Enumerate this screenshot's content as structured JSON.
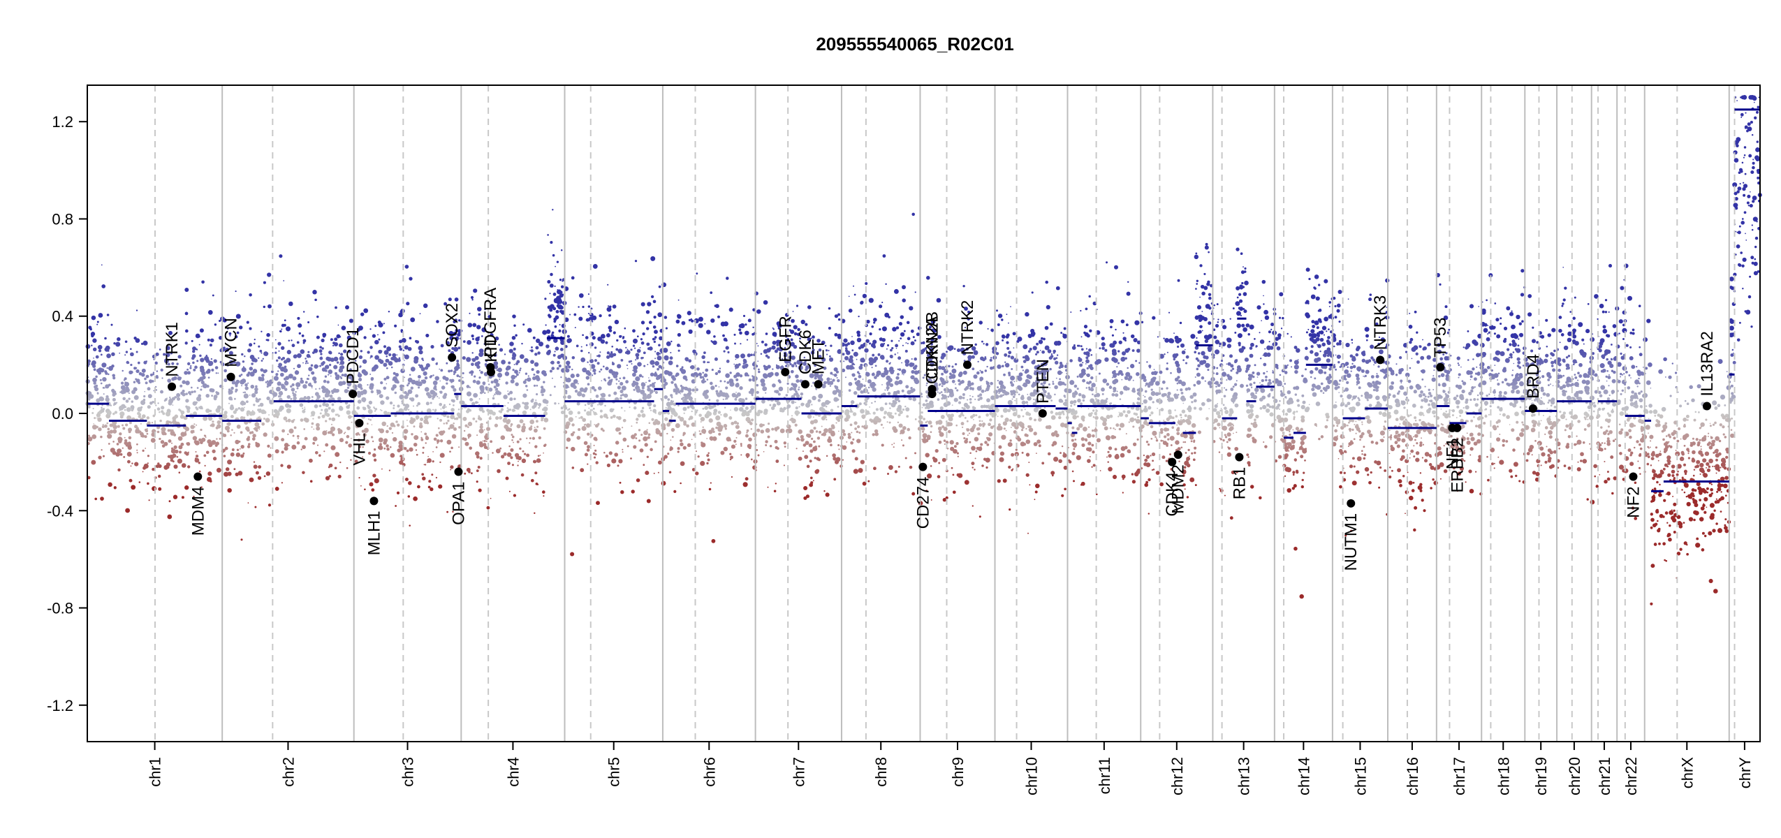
{
  "chart_data": {
    "type": "scatter",
    "title": "209555540065_R02C01",
    "xlabel": "",
    "ylabel": "",
    "ylim": [
      -1.35,
      1.35
    ],
    "yticks": [
      -1.2,
      -0.8,
      -0.4,
      0.0,
      0.4,
      0.8,
      1.2
    ],
    "ytick_labels": [
      "-1.2",
      "-0.8",
      "-0.4",
      "0.0",
      "0.4",
      "0.8",
      "1.2"
    ],
    "grid": false,
    "chromosomes": [
      {
        "name": "chr1",
        "size": 249,
        "centromere": 125
      },
      {
        "name": "chr2",
        "size": 243,
        "centromere": 93
      },
      {
        "name": "chr3",
        "size": 198,
        "centromere": 91
      },
      {
        "name": "chr4",
        "size": 191,
        "centromere": 50
      },
      {
        "name": "chr5",
        "size": 181,
        "centromere": 48
      },
      {
        "name": "chr6",
        "size": 171,
        "centromere": 60
      },
      {
        "name": "chr7",
        "size": 159,
        "centromere": 60
      },
      {
        "name": "chr8",
        "size": 145,
        "centromere": 45
      },
      {
        "name": "chr9",
        "size": 138,
        "centromere": 49
      },
      {
        "name": "chr10",
        "size": 134,
        "centromere": 40
      },
      {
        "name": "chr11",
        "size": 135,
        "centromere": 53
      },
      {
        "name": "chr12",
        "size": 133,
        "centromere": 35
      },
      {
        "name": "chr13",
        "size": 114,
        "centromere": 17
      },
      {
        "name": "chr14",
        "size": 107,
        "centromere": 17
      },
      {
        "name": "chr15",
        "size": 102,
        "centromere": 19
      },
      {
        "name": "chr16",
        "size": 90,
        "centromere": 36
      },
      {
        "name": "chr17",
        "size": 83,
        "centromere": 24
      },
      {
        "name": "chr18",
        "size": 80,
        "centromere": 17
      },
      {
        "name": "chr19",
        "size": 59,
        "centromere": 26
      },
      {
        "name": "chr20",
        "size": 64,
        "centromere": 28
      },
      {
        "name": "chr21",
        "size": 47,
        "centromere": 12
      },
      {
        "name": "chr22",
        "size": 51,
        "centromere": 15
      },
      {
        "name": "chrX",
        "size": 156,
        "centromere": 60
      },
      {
        "name": "chrY",
        "size": 57,
        "centromere": 10
      }
    ],
    "segments": [
      {
        "chr": "chr1",
        "start": 0,
        "end": 40,
        "value": 0.04
      },
      {
        "chr": "chr1",
        "start": 40,
        "end": 110,
        "value": -0.03
      },
      {
        "chr": "chr1",
        "start": 110,
        "end": 182,
        "value": -0.05
      },
      {
        "chr": "chr1",
        "start": 182,
        "end": 249,
        "value": -0.01
      },
      {
        "chr": "chr2",
        "start": 0,
        "end": 46,
        "value": -0.03
      },
      {
        "chr": "chr2",
        "start": 46,
        "end": 72,
        "value": -0.03
      },
      {
        "chr": "chr2",
        "start": 95,
        "end": 243,
        "value": 0.05
      },
      {
        "chr": "chr3",
        "start": 0,
        "end": 68,
        "value": -0.01
      },
      {
        "chr": "chr3",
        "start": 68,
        "end": 185,
        "value": 0.0
      },
      {
        "chr": "chr3",
        "start": 185,
        "end": 198,
        "value": 0.08
      },
      {
        "chr": "chr4",
        "start": 0,
        "end": 78,
        "value": 0.03
      },
      {
        "chr": "chr4",
        "start": 78,
        "end": 155,
        "value": -0.01
      },
      {
        "chr": "chr4",
        "start": 158,
        "end": 191,
        "value": 0.31
      },
      {
        "chr": "chr5",
        "start": 0,
        "end": 165,
        "value": 0.05
      },
      {
        "chr": "chr5",
        "start": 165,
        "end": 181,
        "value": 0.1
      },
      {
        "chr": "chr6",
        "start": 0,
        "end": 12,
        "value": 0.01
      },
      {
        "chr": "chr6",
        "start": 12,
        "end": 24,
        "value": -0.03
      },
      {
        "chr": "chr6",
        "start": 24,
        "end": 171,
        "value": 0.04
      },
      {
        "chr": "chr7",
        "start": 0,
        "end": 85,
        "value": 0.06
      },
      {
        "chr": "chr7",
        "start": 85,
        "end": 159,
        "value": 0.0
      },
      {
        "chr": "chr8",
        "start": 0,
        "end": 29,
        "value": 0.03
      },
      {
        "chr": "chr8",
        "start": 29,
        "end": 145,
        "value": 0.07
      },
      {
        "chr": "chr9",
        "start": 0,
        "end": 14,
        "value": -0.05
      },
      {
        "chr": "chr9",
        "start": 14,
        "end": 138,
        "value": 0.01
      },
      {
        "chr": "chr10",
        "start": 0,
        "end": 112,
        "value": 0.03
      },
      {
        "chr": "chr10",
        "start": 112,
        "end": 134,
        "value": 0.02
      },
      {
        "chr": "chr11",
        "start": 0,
        "end": 8,
        "value": -0.04
      },
      {
        "chr": "chr11",
        "start": 8,
        "end": 18,
        "value": -0.08
      },
      {
        "chr": "chr11",
        "start": 18,
        "end": 135,
        "value": 0.03
      },
      {
        "chr": "chr12",
        "start": 0,
        "end": 15,
        "value": -0.02
      },
      {
        "chr": "chr12",
        "start": 15,
        "end": 64,
        "value": -0.04
      },
      {
        "chr": "chr12",
        "start": 78,
        "end": 102,
        "value": -0.08
      },
      {
        "chr": "chr12",
        "start": 102,
        "end": 133,
        "value": 0.28
      },
      {
        "chr": "chr13",
        "start": 17,
        "end": 45,
        "value": -0.02
      },
      {
        "chr": "chr13",
        "start": 45,
        "end": 62,
        "value": 0.39
      },
      {
        "chr": "chr13",
        "start": 62,
        "end": 80,
        "value": 0.05
      },
      {
        "chr": "chr13",
        "start": 80,
        "end": 114,
        "value": 0.11
      },
      {
        "chr": "chr14",
        "start": 17,
        "end": 35,
        "value": -0.1
      },
      {
        "chr": "chr14",
        "start": 35,
        "end": 58,
        "value": -0.08
      },
      {
        "chr": "chr14",
        "start": 58,
        "end": 107,
        "value": 0.2
      },
      {
        "chr": "chr15",
        "start": 19,
        "end": 60,
        "value": -0.02
      },
      {
        "chr": "chr15",
        "start": 60,
        "end": 102,
        "value": 0.02
      },
      {
        "chr": "chr16",
        "start": 0,
        "end": 90,
        "value": -0.06
      },
      {
        "chr": "chr17",
        "start": 0,
        "end": 24,
        "value": 0.03
      },
      {
        "chr": "chr17",
        "start": 24,
        "end": 55,
        "value": -0.04
      },
      {
        "chr": "chr17",
        "start": 55,
        "end": 83,
        "value": 0.0
      },
      {
        "chr": "chr18",
        "start": 0,
        "end": 80,
        "value": 0.06
      },
      {
        "chr": "chr19",
        "start": 0,
        "end": 59,
        "value": 0.01
      },
      {
        "chr": "chr20",
        "start": 0,
        "end": 64,
        "value": 0.05
      },
      {
        "chr": "chr21",
        "start": 12,
        "end": 47,
        "value": 0.05
      },
      {
        "chr": "chr22",
        "start": 15,
        "end": 51,
        "value": -0.01
      },
      {
        "chr": "chrX",
        "start": 0,
        "end": 12,
        "value": -0.03
      },
      {
        "chr": "chrX",
        "start": 12,
        "end": 35,
        "value": -0.32
      },
      {
        "chr": "chrX",
        "start": 35,
        "end": 156,
        "value": -0.28
      },
      {
        "chr": "chrY",
        "start": 0,
        "end": 10,
        "value": 0.16
      },
      {
        "chr": "chrY",
        "start": 10,
        "end": 57,
        "value": 1.25
      }
    ],
    "genes": [
      {
        "name": "NTRK1",
        "chr": "chr1",
        "pos": 156,
        "value": 0.11,
        "label": "above"
      },
      {
        "name": "MDM4",
        "chr": "chr1",
        "pos": 204,
        "value": -0.26,
        "label": "below"
      },
      {
        "name": "MYCN",
        "chr": "chr2",
        "pos": 16,
        "value": 0.15,
        "label": "above"
      },
      {
        "name": "PDCD1",
        "chr": "chr2",
        "pos": 241,
        "value": 0.08,
        "label": "above"
      },
      {
        "name": "VHL",
        "chr": "chr3",
        "pos": 10,
        "value": -0.04,
        "label": "below"
      },
      {
        "name": "MLH1",
        "chr": "chr3",
        "pos": 37,
        "value": -0.36,
        "label": "below"
      },
      {
        "name": "SOX2",
        "chr": "chr3",
        "pos": 181,
        "value": 0.23,
        "label": "above"
      },
      {
        "name": "OPA1",
        "chr": "chr3",
        "pos": 193,
        "value": -0.24,
        "label": "below"
      },
      {
        "name": "PDGFRA",
        "chr": "chr4",
        "pos": 54,
        "value": 0.19,
        "label": "above"
      },
      {
        "name": "KIT",
        "chr": "chr4",
        "pos": 55,
        "value": 0.17,
        "label": "above"
      },
      {
        "name": "EGFR",
        "chr": "chr7",
        "pos": 55,
        "value": 0.17,
        "label": "above"
      },
      {
        "name": "CDK6",
        "chr": "chr7",
        "pos": 92,
        "value": 0.12,
        "label": "above"
      },
      {
        "name": "MET",
        "chr": "chr7",
        "pos": 116,
        "value": 0.12,
        "label": "above"
      },
      {
        "name": "CD274",
        "chr": "chr9",
        "pos": 5,
        "value": -0.22,
        "label": "below"
      },
      {
        "name": "CDKN2A",
        "chr": "chr9",
        "pos": 22,
        "value": 0.08,
        "label": "above"
      },
      {
        "name": "CDKN2B",
        "chr": "chr9",
        "pos": 22,
        "value": 0.1,
        "label": "above"
      },
      {
        "name": "NTRK2",
        "chr": "chr9",
        "pos": 87,
        "value": 0.2,
        "label": "above"
      },
      {
        "name": "PTEN",
        "chr": "chr10",
        "pos": 88,
        "value": 0.0,
        "label": "above"
      },
      {
        "name": "CDK4",
        "chr": "chr12",
        "pos": 58,
        "value": -0.2,
        "label": "below"
      },
      {
        "name": "MDM2",
        "chr": "chr12",
        "pos": 69,
        "value": -0.17,
        "label": "below"
      },
      {
        "name": "RB1",
        "chr": "chr13",
        "pos": 49,
        "value": -0.18,
        "label": "below"
      },
      {
        "name": "NUTM1",
        "chr": "chr15",
        "pos": 34,
        "value": -0.37,
        "label": "below"
      },
      {
        "name": "NTRK3",
        "chr": "chr15",
        "pos": 88,
        "value": 0.22,
        "label": "above"
      },
      {
        "name": "TP53",
        "chr": "chr17",
        "pos": 7,
        "value": 0.19,
        "label": "above"
      },
      {
        "name": "NF1",
        "chr": "chr17",
        "pos": 29,
        "value": -0.06,
        "label": "below"
      },
      {
        "name": "ERBB2",
        "chr": "chr17",
        "pos": 38,
        "value": -0.06,
        "label": "below"
      },
      {
        "name": "BRD4",
        "chr": "chr19",
        "pos": 15,
        "value": 0.02,
        "label": "above"
      },
      {
        "name": "NF2",
        "chr": "chr22",
        "pos": 30,
        "value": -0.26,
        "label": "below"
      },
      {
        "name": "IL13RA2",
        "chr": "chrX",
        "pos": 115,
        "value": 0.03,
        "label": "above"
      }
    ],
    "colors": {
      "gain": "#3333a6",
      "neutral": "#c8c8c8",
      "loss": "#9b2a2a",
      "segment": "#00008b",
      "gene_dot": "#000000",
      "chrom_boundary": "#bdbdbd",
      "centromere": "#c8c8c8"
    }
  }
}
